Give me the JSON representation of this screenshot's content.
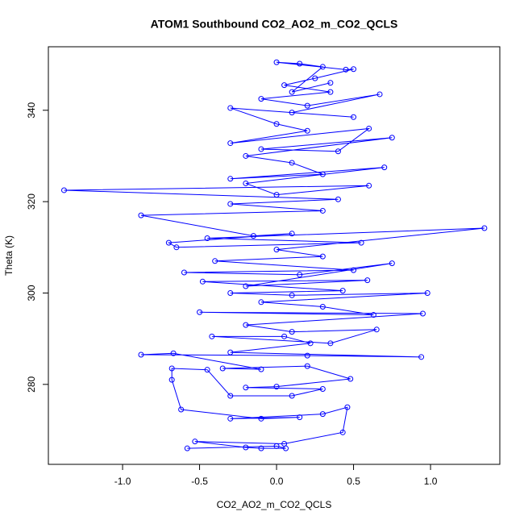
{
  "chart_data": {
    "type": "line",
    "title": "ATOM1 Southbound CO2_AO2_m_CO2_QCLS",
    "xlabel": "CO2_AO2_m_CO2_QCLS",
    "ylabel": "Theta (K)",
    "xlim": [
      -1.482,
      1.45
    ],
    "ylim": [
      262.5,
      353.9
    ],
    "xticks": [
      {
        "value": -1.0,
        "label": "-1.0"
      },
      -0.5,
      {
        "value": 0.0,
        "label": "0.0"
      },
      0.5,
      {
        "value": 1.0,
        "label": "1.0"
      }
    ],
    "yticks": [
      280,
      300,
      320,
      340
    ],
    "grid": false,
    "x": [
      -0.58,
      0.0,
      0.06,
      -0.1,
      -0.2,
      -0.53,
      0.05,
      0.43,
      0.46,
      0.3,
      -0.3,
      0.15,
      -0.1,
      -0.62,
      -0.68,
      -0.68,
      -0.45,
      -0.3,
      0.1,
      0.3,
      -0.2,
      0.0,
      0.48,
      0.2,
      -0.35,
      -0.1,
      -0.67,
      -0.88,
      0.2,
      0.94,
      -0.3,
      0.22,
      0.05,
      -0.42,
      0.35,
      0.65,
      0.1,
      -0.2,
      0.95,
      -0.5,
      0.63,
      0.3,
      -0.1,
      0.98,
      0.1,
      -0.3,
      0.43,
      -0.48,
      0.59,
      -0.2,
      0.75,
      0.15,
      -0.6,
      0.5,
      -0.4,
      0.3,
      0.0,
      1.35,
      -0.45,
      0.55,
      -0.65,
      -0.7,
      0.1,
      -0.15,
      -0.88,
      0.3,
      -0.3,
      0.4,
      -1.38,
      0.6,
      0.0,
      -0.2,
      0.7,
      -0.3,
      0.3,
      0.1,
      -0.2,
      0.75,
      -0.1,
      0.4,
      0.6,
      -0.3,
      0.2,
      0.0,
      -0.3,
      0.5,
      0.1,
      0.67,
      0.2,
      -0.1,
      0.35,
      0.05,
      0.25,
      0.5,
      0.45,
      0.0,
      0.15,
      0.3,
      0.1,
      0.35
    ],
    "series": [
      {
        "color": "#0000ff",
        "values": [
          266,
          266.5,
          266,
          266,
          266.2,
          267.5,
          267,
          269.5,
          275,
          273.5,
          272.5,
          272.8,
          272.5,
          274.5,
          281,
          283.5,
          283.2,
          277.5,
          277.5,
          279,
          279.3,
          279.5,
          281.2,
          284,
          283.5,
          283.3,
          286.8,
          286.5,
          286.3,
          286,
          287,
          289,
          290.5,
          290.5,
          289,
          292,
          291.5,
          293,
          295.5,
          295.8,
          295.2,
          297,
          298,
          300,
          299.5,
          300,
          300.5,
          302.5,
          302.8,
          301.5,
          306.5,
          304,
          304.5,
          305,
          307,
          308,
          309.5,
          314.2,
          312,
          311,
          310,
          311,
          313,
          312.5,
          317,
          318,
          319.5,
          320.5,
          322.5,
          323.5,
          321.5,
          324,
          327.5,
          325,
          326,
          328.5,
          330,
          334,
          331.5,
          331,
          336,
          332.8,
          335.5,
          337,
          340.5,
          338.5,
          339.5,
          343.5,
          341,
          342.5,
          344,
          345.5,
          347,
          349,
          348.9,
          350.5,
          350.2,
          349.5,
          344,
          346
        ]
      }
    ]
  }
}
